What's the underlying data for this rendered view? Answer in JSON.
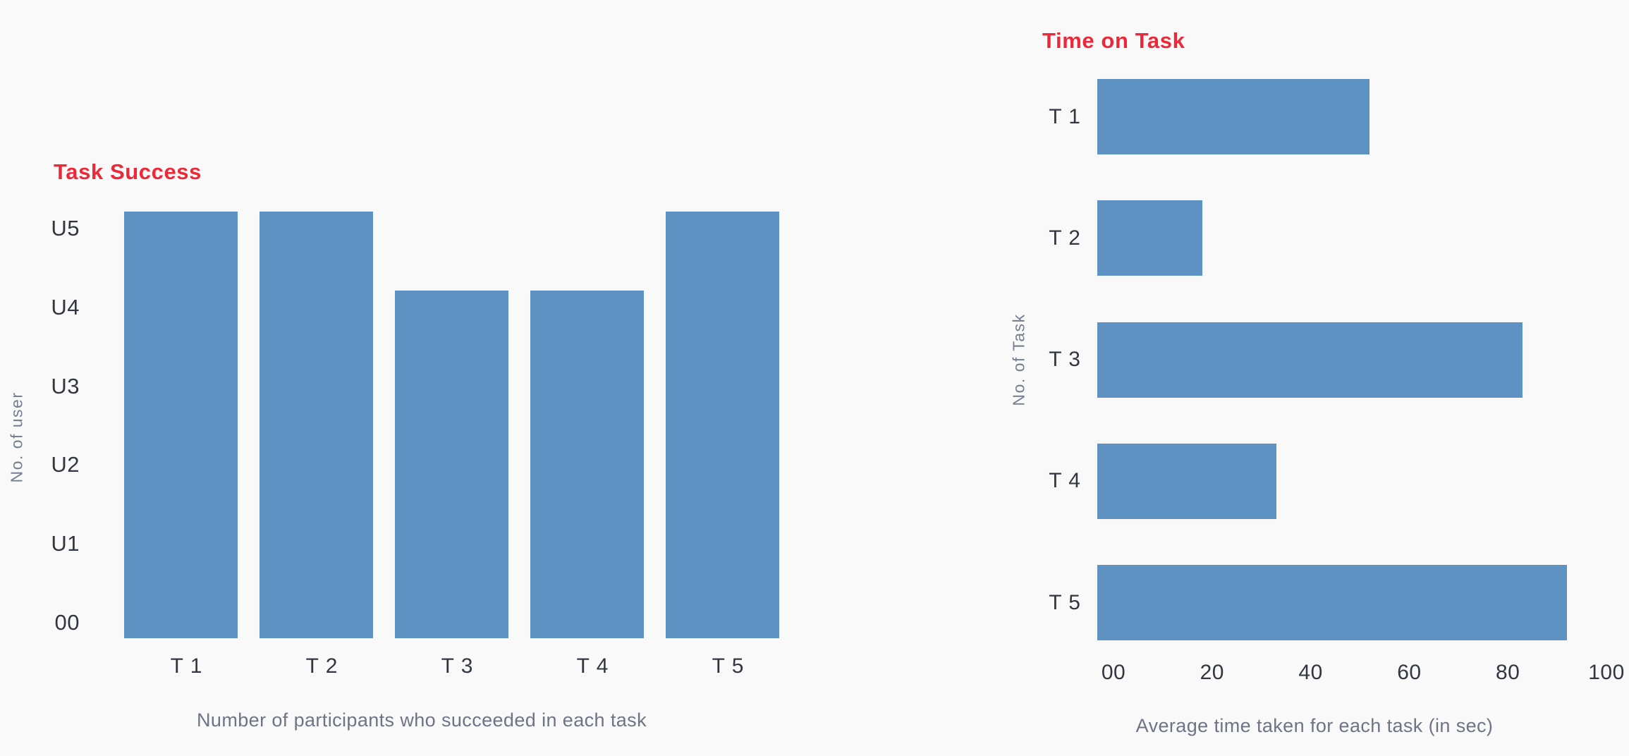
{
  "page": {
    "background_color": "#f9f9fa",
    "bar_color": "#5e92c2",
    "title_color": "#ea2a38",
    "label_color": "#32373f",
    "muted_color": "#6d7585"
  },
  "chart_data": [
    {
      "type": "bar",
      "orientation": "vertical",
      "title": "Task Success",
      "categories": [
        "T 1",
        "T 2",
        "T 3",
        "T 4",
        "T 5"
      ],
      "values": [
        5,
        5,
        4,
        4,
        5
      ],
      "xlabel": "Number of participants who succeeded in each task",
      "ylabel": "No. of user",
      "ytick_labels_bottom_up": [
        "00",
        "U1",
        "U2",
        "U3",
        "U4",
        "U5"
      ],
      "ylim": [
        0,
        5
      ],
      "grid": false,
      "legend": false
    },
    {
      "type": "bar",
      "orientation": "horizontal",
      "title": "Time on Task",
      "categories": [
        "T 1",
        "T 2",
        "T 3",
        "T 4",
        "T 5"
      ],
      "values": [
        52,
        18,
        83,
        33,
        92
      ],
      "xlabel": "Average time taken for each task (in sec)",
      "ylabel": "No. of Task",
      "xtick_labels": [
        "00",
        "20",
        "40",
        "60",
        "80",
        "100"
      ],
      "xtick_values": [
        0,
        20,
        40,
        60,
        80,
        100
      ],
      "xlim": [
        0,
        100
      ],
      "grid": false,
      "legend": false
    }
  ]
}
